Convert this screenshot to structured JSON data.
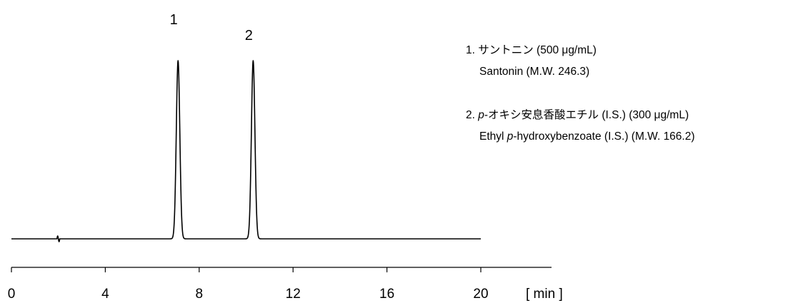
{
  "chart_data": {
    "type": "line",
    "xlabel": "[ min ]",
    "xlim": [
      0,
      23
    ],
    "ticks": [
      0,
      4,
      8,
      12,
      16,
      20
    ],
    "tick_labels": [
      "0",
      "4",
      "8",
      "12",
      "16",
      "20"
    ],
    "trace_end": 20,
    "grid": false,
    "peaks": [
      {
        "label": "1",
        "time": 7.1,
        "height": 1.0
      },
      {
        "label": "2",
        "time": 10.3,
        "height": 1.0
      }
    ],
    "disturbance": {
      "time": 2.0
    }
  },
  "legend": [
    {
      "line1": {
        "prefix": "1.  サントニン  (500 ",
        "mu": "μ",
        "suffix": "g/mL)"
      },
      "line2": "Santonin (M.W. 246.3)"
    },
    {
      "line1": {
        "prefix": "2. ",
        "italic": "p",
        "rest": "-オキシ安息香酸エチル  (I.S.) (300 ",
        "mu": "μ",
        "suffix": "g/mL)"
      },
      "line2": {
        "prefix": "Ethyl ",
        "italic": "p",
        "rest": "-hydroxybenzoate (I.S.) (M.W. 166.2)"
      }
    }
  ]
}
